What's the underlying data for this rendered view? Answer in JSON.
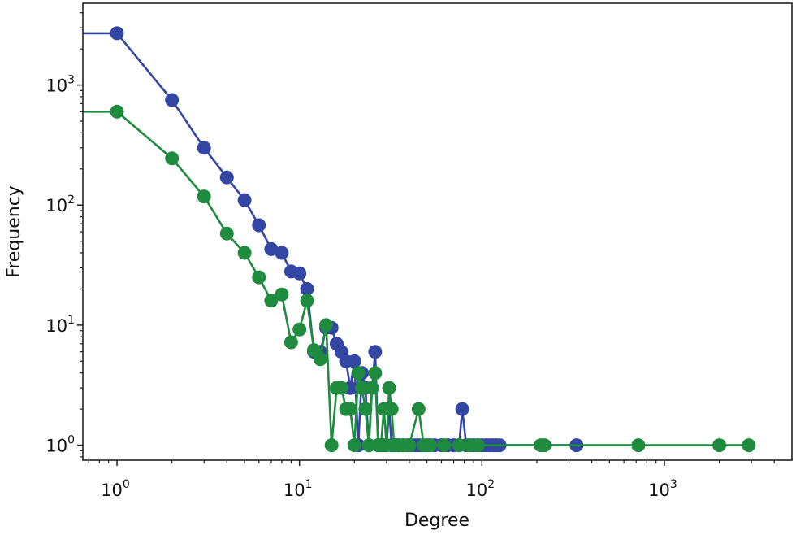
{
  "chart_data": {
    "type": "line",
    "xscale": "log",
    "yscale": "log",
    "xlabel": "Degree",
    "ylabel": "Frequency",
    "xlim": [
      0.65,
      5000
    ],
    "ylim": [
      0.75,
      4800
    ],
    "grid": false,
    "x_ticks": [
      {
        "base": "10",
        "exp": "0",
        "value": 1
      },
      {
        "base": "10",
        "exp": "1",
        "value": 10
      },
      {
        "base": "10",
        "exp": "2",
        "value": 100
      },
      {
        "base": "10",
        "exp": "3",
        "value": 1000
      }
    ],
    "y_ticks": [
      {
        "base": "10",
        "exp": "0",
        "value": 1
      },
      {
        "base": "10",
        "exp": "1",
        "value": 10
      },
      {
        "base": "10",
        "exp": "2",
        "value": 100
      },
      {
        "base": "10",
        "exp": "3",
        "value": 1000
      }
    ],
    "series": [
      {
        "color": "#3446a4",
        "points": [
          [
            0.5,
            2700
          ],
          [
            1,
            2700
          ],
          [
            2,
            750
          ],
          [
            3,
            300
          ],
          [
            4,
            170
          ],
          [
            5,
            110
          ],
          [
            6,
            68
          ],
          [
            7,
            43
          ],
          [
            8,
            40
          ],
          [
            9,
            28
          ],
          [
            10,
            27
          ],
          [
            11,
            20
          ],
          [
            12,
            6
          ],
          [
            13,
            6
          ],
          [
            14,
            9.5
          ],
          [
            15,
            9.5
          ],
          [
            16,
            7
          ],
          [
            17,
            6
          ],
          [
            18,
            5
          ],
          [
            19,
            3
          ],
          [
            20,
            5
          ],
          [
            21,
            1
          ],
          [
            22,
            4
          ],
          [
            23,
            3
          ],
          [
            24,
            1
          ],
          [
            25,
            3
          ],
          [
            26,
            6
          ],
          [
            27,
            1
          ],
          [
            28,
            1
          ],
          [
            29,
            1
          ],
          [
            30,
            1
          ],
          [
            31,
            2
          ],
          [
            32,
            1
          ],
          [
            33,
            1
          ],
          [
            34,
            1
          ],
          [
            35,
            1
          ],
          [
            37,
            1
          ],
          [
            39,
            1
          ],
          [
            41,
            1
          ],
          [
            43,
            1
          ],
          [
            45,
            1
          ],
          [
            47,
            1
          ],
          [
            50,
            1
          ],
          [
            52,
            1
          ],
          [
            55,
            1
          ],
          [
            60,
            1
          ],
          [
            65,
            1
          ],
          [
            70,
            1
          ],
          [
            75,
            1
          ],
          [
            78,
            2
          ],
          [
            82,
            1
          ],
          [
            86,
            1
          ],
          [
            90,
            1
          ],
          [
            95,
            1
          ],
          [
            100,
            1
          ],
          [
            105,
            1
          ],
          [
            110,
            1
          ],
          [
            115,
            1
          ],
          [
            120,
            1
          ],
          [
            125,
            1
          ],
          [
            330,
            1
          ]
        ]
      },
      {
        "color": "#1e8b3e",
        "points": [
          [
            0.5,
            600
          ],
          [
            1,
            600
          ],
          [
            2,
            245
          ],
          [
            3,
            118
          ],
          [
            4,
            58
          ],
          [
            5,
            40
          ],
          [
            6,
            25
          ],
          [
            7,
            16
          ],
          [
            8,
            18
          ],
          [
            9,
            7.2
          ],
          [
            10,
            9.2
          ],
          [
            11,
            16
          ],
          [
            12,
            6.2
          ],
          [
            13,
            5.2
          ],
          [
            14,
            10
          ],
          [
            15,
            1
          ],
          [
            16,
            3
          ],
          [
            17,
            3
          ],
          [
            18,
            2
          ],
          [
            19,
            2
          ],
          [
            20,
            1
          ],
          [
            21,
            4
          ],
          [
            22,
            3
          ],
          [
            23,
            2
          ],
          [
            24,
            1
          ],
          [
            25,
            3
          ],
          [
            26,
            4
          ],
          [
            27,
            1
          ],
          [
            28,
            1
          ],
          [
            29,
            2
          ],
          [
            30,
            1
          ],
          [
            31,
            3
          ],
          [
            32,
            2
          ],
          [
            33,
            1
          ],
          [
            35,
            1
          ],
          [
            37,
            1
          ],
          [
            40,
            1
          ],
          [
            45,
            2
          ],
          [
            48,
            1
          ],
          [
            52,
            1
          ],
          [
            62,
            1
          ],
          [
            75,
            1
          ],
          [
            85,
            1
          ],
          [
            95,
            1
          ],
          [
            210,
            1
          ],
          [
            220,
            1
          ],
          [
            720,
            1
          ],
          [
            2000,
            1
          ],
          [
            2900,
            1
          ]
        ]
      }
    ]
  }
}
